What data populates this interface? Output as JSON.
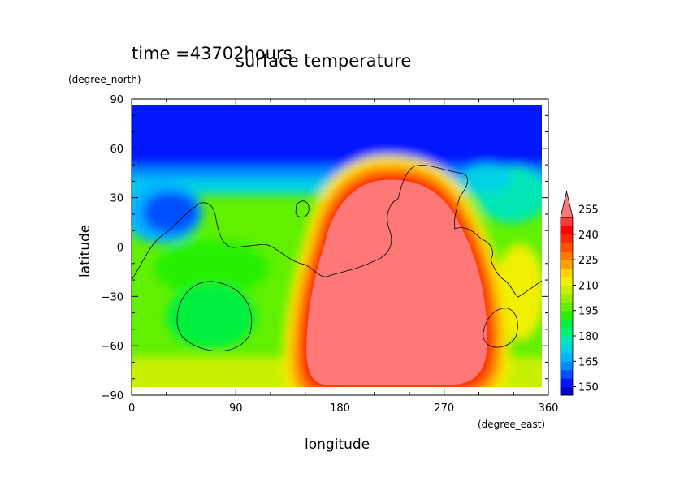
{
  "chart_data": {
    "type": "heatmap",
    "time_label": "time =43702hours",
    "title": "surface temperature",
    "xlabel": "longitude",
    "ylabel": "latitude",
    "x_unit": "(degree_east)",
    "y_unit": "(degree_north)",
    "xlim": [
      0,
      360
    ],
    "ylim": [
      -90,
      90
    ],
    "x_ticks": [
      "0",
      "90",
      "180",
      "270",
      "360"
    ],
    "y_ticks": [
      "90",
      "60",
      "30",
      "0",
      "−30",
      "−60",
      "−90"
    ],
    "colorbar": {
      "levels": [
        145,
        150,
        155,
        160,
        165,
        170,
        175,
        180,
        185,
        190,
        195,
        200,
        205,
        210,
        215,
        220,
        225,
        230,
        235,
        240,
        245,
        250,
        255
      ],
      "tick_labels": [
        "150",
        "165",
        "180",
        "195",
        "210",
        "225",
        "240",
        "255"
      ],
      "colors": [
        "#0000c8",
        "#0014ff",
        "#0050ff",
        "#008cff",
        "#00b4ff",
        "#00d2e6",
        "#00e6b4",
        "#00f078",
        "#00f040",
        "#28f000",
        "#60f000",
        "#96f000",
        "#c8f000",
        "#f0f000",
        "#ffd200",
        "#ffa000",
        "#ff7800",
        "#ff5000",
        "#ff2800",
        "#ff0000",
        "#ff3a3a",
        "#ff7878"
      ]
    },
    "fields": {
      "cold_cap": "north of 50N, ~145-150",
      "hot_region": "lon 160-300, lat -85 to 35, >255",
      "warm_region_west": "lon 0-120, ~195-215"
    }
  }
}
